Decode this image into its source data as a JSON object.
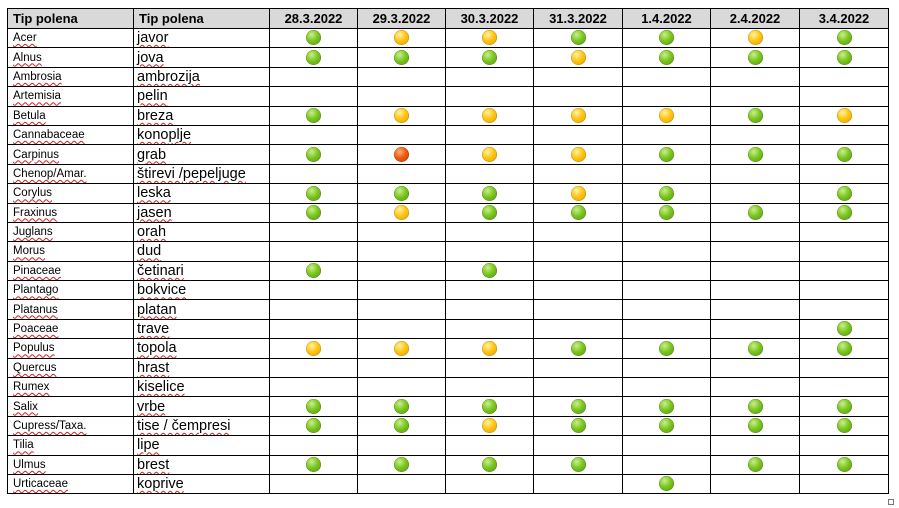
{
  "header": {
    "latin": "Tip polena",
    "local": "Tip polena",
    "dates": [
      "28.3.2022",
      "29.3.2022",
      "30.3.2022",
      "31.3.2022",
      "1.4.2022",
      "2.4.2022",
      "3.4.2022"
    ]
  },
  "levels": {
    "g": "green",
    "y": "yellow",
    "o": "orange",
    "": "none"
  },
  "colors": {
    "green": "#7cc521",
    "yellow": "#ffc511",
    "orange": "#f05a12",
    "header_bg": "#d9d9d9"
  },
  "rows": [
    {
      "latin": "Acer",
      "local": "javor",
      "values": [
        "g",
        "y",
        "y",
        "g",
        "g",
        "y",
        "g"
      ]
    },
    {
      "latin": "Alnus",
      "local": "jova",
      "values": [
        "g",
        "g",
        "g",
        "y",
        "g",
        "g",
        "g"
      ]
    },
    {
      "latin": "Ambrosia",
      "local": "ambrozija",
      "values": [
        "",
        "",
        "",
        "",
        "",
        "",
        ""
      ]
    },
    {
      "latin": "Artemisia",
      "local": "pelin",
      "values": [
        "",
        "",
        "",
        "",
        "",
        "",
        ""
      ]
    },
    {
      "latin": "Betula",
      "local": "breza",
      "values": [
        "g",
        "y",
        "y",
        "y",
        "y",
        "g",
        "y"
      ]
    },
    {
      "latin": "Cannabaceae",
      "local": "konoplje",
      "values": [
        "",
        "",
        "",
        "",
        "",
        "",
        ""
      ]
    },
    {
      "latin": "Carpinus",
      "local": "grab",
      "values": [
        "g",
        "o",
        "y",
        "y",
        "g",
        "g",
        "g"
      ]
    },
    {
      "latin": "Chenop/Amar.",
      "local": "štirevi /pepeljuge",
      "values": [
        "",
        "",
        "",
        "",
        "",
        "",
        ""
      ]
    },
    {
      "latin": "Corylus",
      "local": "leska",
      "values": [
        "g",
        "g",
        "g",
        "y",
        "g",
        "",
        "g"
      ]
    },
    {
      "latin": "Fraxinus",
      "local": "jasen",
      "values": [
        "g",
        "y",
        "g",
        "g",
        "g",
        "g",
        "g"
      ]
    },
    {
      "latin": "Juglans",
      "local": "orah",
      "values": [
        "",
        "",
        "",
        "",
        "",
        "",
        ""
      ]
    },
    {
      "latin": "Morus",
      "local": "dud",
      "values": [
        "",
        "",
        "",
        "",
        "",
        "",
        ""
      ]
    },
    {
      "latin": "Pinaceae",
      "local": "četinari",
      "values": [
        "g",
        "",
        "g",
        "",
        "",
        "",
        ""
      ]
    },
    {
      "latin": "Plantago",
      "local": "bokvice",
      "values": [
        "",
        "",
        "",
        "",
        "",
        "",
        ""
      ]
    },
    {
      "latin": "Platanus",
      "local": "platan",
      "values": [
        "",
        "",
        "",
        "",
        "",
        "",
        ""
      ]
    },
    {
      "latin": "Poaceae",
      "local": "trave",
      "values": [
        "",
        "",
        "",
        "",
        "",
        "",
        "g"
      ]
    },
    {
      "latin": "Populus",
      "local": "topola",
      "values": [
        "y",
        "y",
        "y",
        "g",
        "g",
        "g",
        "g"
      ]
    },
    {
      "latin": "Quercus",
      "local": "hrast",
      "values": [
        "",
        "",
        "",
        "",
        "",
        "",
        ""
      ]
    },
    {
      "latin": "Rumex",
      "local": "kiselice",
      "values": [
        "",
        "",
        "",
        "",
        "",
        "",
        ""
      ]
    },
    {
      "latin": "Salix",
      "local": "vrbe",
      "values": [
        "g",
        "g",
        "g",
        "g",
        "g",
        "g",
        "g"
      ]
    },
    {
      "latin": "Cupress/Taxa.",
      "local": "tise / čempresi",
      "values": [
        "g",
        "g",
        "y",
        "g",
        "g",
        "g",
        "g"
      ]
    },
    {
      "latin": "Tilia",
      "local": "lipe",
      "values": [
        "",
        "",
        "",
        "",
        "",
        "",
        ""
      ]
    },
    {
      "latin": "Ulmus",
      "local": "brest",
      "values": [
        "g",
        "g",
        "g",
        "g",
        "",
        "g",
        "g"
      ]
    },
    {
      "latin": "Urticaceae",
      "local": "koprive",
      "values": [
        "",
        "",
        "",
        "",
        "g",
        "",
        ""
      ]
    }
  ]
}
